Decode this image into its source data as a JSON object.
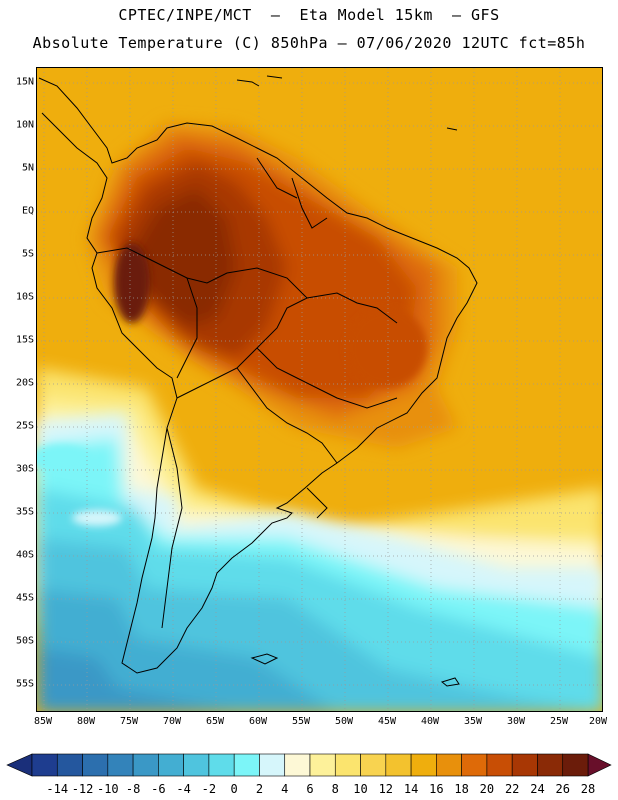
{
  "title_line1": "CPTEC/INPE/MCT  –  Eta Model 15km  – GFS",
  "title_line2": "Absolute Temperature (C) 850hPa – 07/06/2020 12UTC fct=85h",
  "lat_labels": [
    "15N",
    "10N",
    "5N",
    "EQ",
    "5S",
    "10S",
    "15S",
    "20S",
    "25S",
    "30S",
    "35S",
    "40S",
    "45S",
    "50S",
    "55S"
  ],
  "lon_labels": [
    "85W",
    "80W",
    "75W",
    "70W",
    "65W",
    "60W",
    "55W",
    "50W",
    "45W",
    "40W",
    "35W",
    "30W",
    "25W",
    "20W"
  ],
  "colorbar": {
    "labels": [
      "-14",
      "-12",
      "-10",
      "-8",
      "-6",
      "-4",
      "-2",
      "0",
      "2",
      "4",
      "6",
      "8",
      "10",
      "12",
      "14",
      "16",
      "18",
      "20",
      "22",
      "24",
      "26",
      "28"
    ],
    "colors": [
      "#1e3d8f",
      "#24579e",
      "#2c6fae",
      "#3383ba",
      "#3a98c6",
      "#43aed2",
      "#4fc4de",
      "#5fdcea",
      "#7cf5f8",
      "#d6f6fb",
      "#fdf8d6",
      "#fdf19a",
      "#fbe46e",
      "#f8d350",
      "#f3c22e",
      "#efae0d",
      "#e8900c",
      "#de6a08",
      "#c84e05",
      "#a83704",
      "#8a2a06",
      "#6b1c0a"
    ],
    "low_arrow_color": "#1a2f7a",
    "high_arrow_color": "#680f2a"
  }
}
